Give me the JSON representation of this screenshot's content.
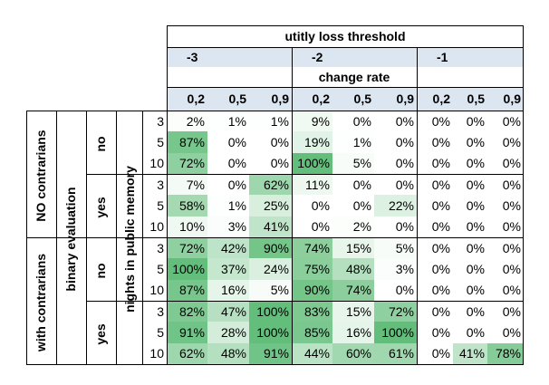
{
  "header": {
    "threshold_title": "utitly loss threshold",
    "change_rate_title": "change rate",
    "thresholds": [
      "-3",
      "-2",
      "-1"
    ],
    "rates": [
      "0,2",
      "0,5",
      "0,9",
      "0,2",
      "0,5",
      "0,9",
      "0,2",
      "0,5",
      "0,9"
    ]
  },
  "row_labels": {
    "contrarians": [
      "NO contrarians",
      "with contrarians"
    ],
    "binary_evaluation_title": "binary evaluation",
    "binary_evaluation": [
      "no",
      "yes",
      "no",
      "yes"
    ],
    "nights_title": "nights in public memory",
    "nights": [
      "3",
      "5",
      "10"
    ]
  },
  "colors": {
    "header_band": "#dce6f1",
    "heat_high": "#63be7b",
    "heat_low": "#ffffff"
  },
  "cells": [
    [
      "2%",
      "1%",
      "1%",
      "9%",
      "0%",
      "0%",
      "0%",
      "0%",
      "0%"
    ],
    [
      "87%",
      "0%",
      "0%",
      "19%",
      "1%",
      "0%",
      "0%",
      "0%",
      "0%"
    ],
    [
      "72%",
      "0%",
      "0%",
      "100%",
      "5%",
      "0%",
      "0%",
      "0%",
      "0%"
    ],
    [
      "7%",
      "0%",
      "62%",
      "11%",
      "0%",
      "0%",
      "0%",
      "0%",
      "0%"
    ],
    [
      "58%",
      "1%",
      "25%",
      "0%",
      "0%",
      "22%",
      "0%",
      "0%",
      "0%"
    ],
    [
      "10%",
      "3%",
      "41%",
      "0%",
      "2%",
      "0%",
      "0%",
      "0%",
      "0%"
    ],
    [
      "72%",
      "42%",
      "90%",
      "74%",
      "15%",
      "5%",
      "0%",
      "0%",
      "0%"
    ],
    [
      "100%",
      "37%",
      "24%",
      "75%",
      "48%",
      "3%",
      "0%",
      "0%",
      "0%"
    ],
    [
      "87%",
      "16%",
      "5%",
      "90%",
      "74%",
      "0%",
      "0%",
      "0%",
      "0%"
    ],
    [
      "82%",
      "47%",
      "100%",
      "83%",
      "15%",
      "72%",
      "0%",
      "0%",
      "0%"
    ],
    [
      "91%",
      "28%",
      "100%",
      "85%",
      "16%",
      "100%",
      "0%",
      "0%",
      "0%"
    ],
    [
      "62%",
      "48%",
      "91%",
      "44%",
      "60%",
      "61%",
      "0%",
      "41%",
      "78%"
    ]
  ]
}
